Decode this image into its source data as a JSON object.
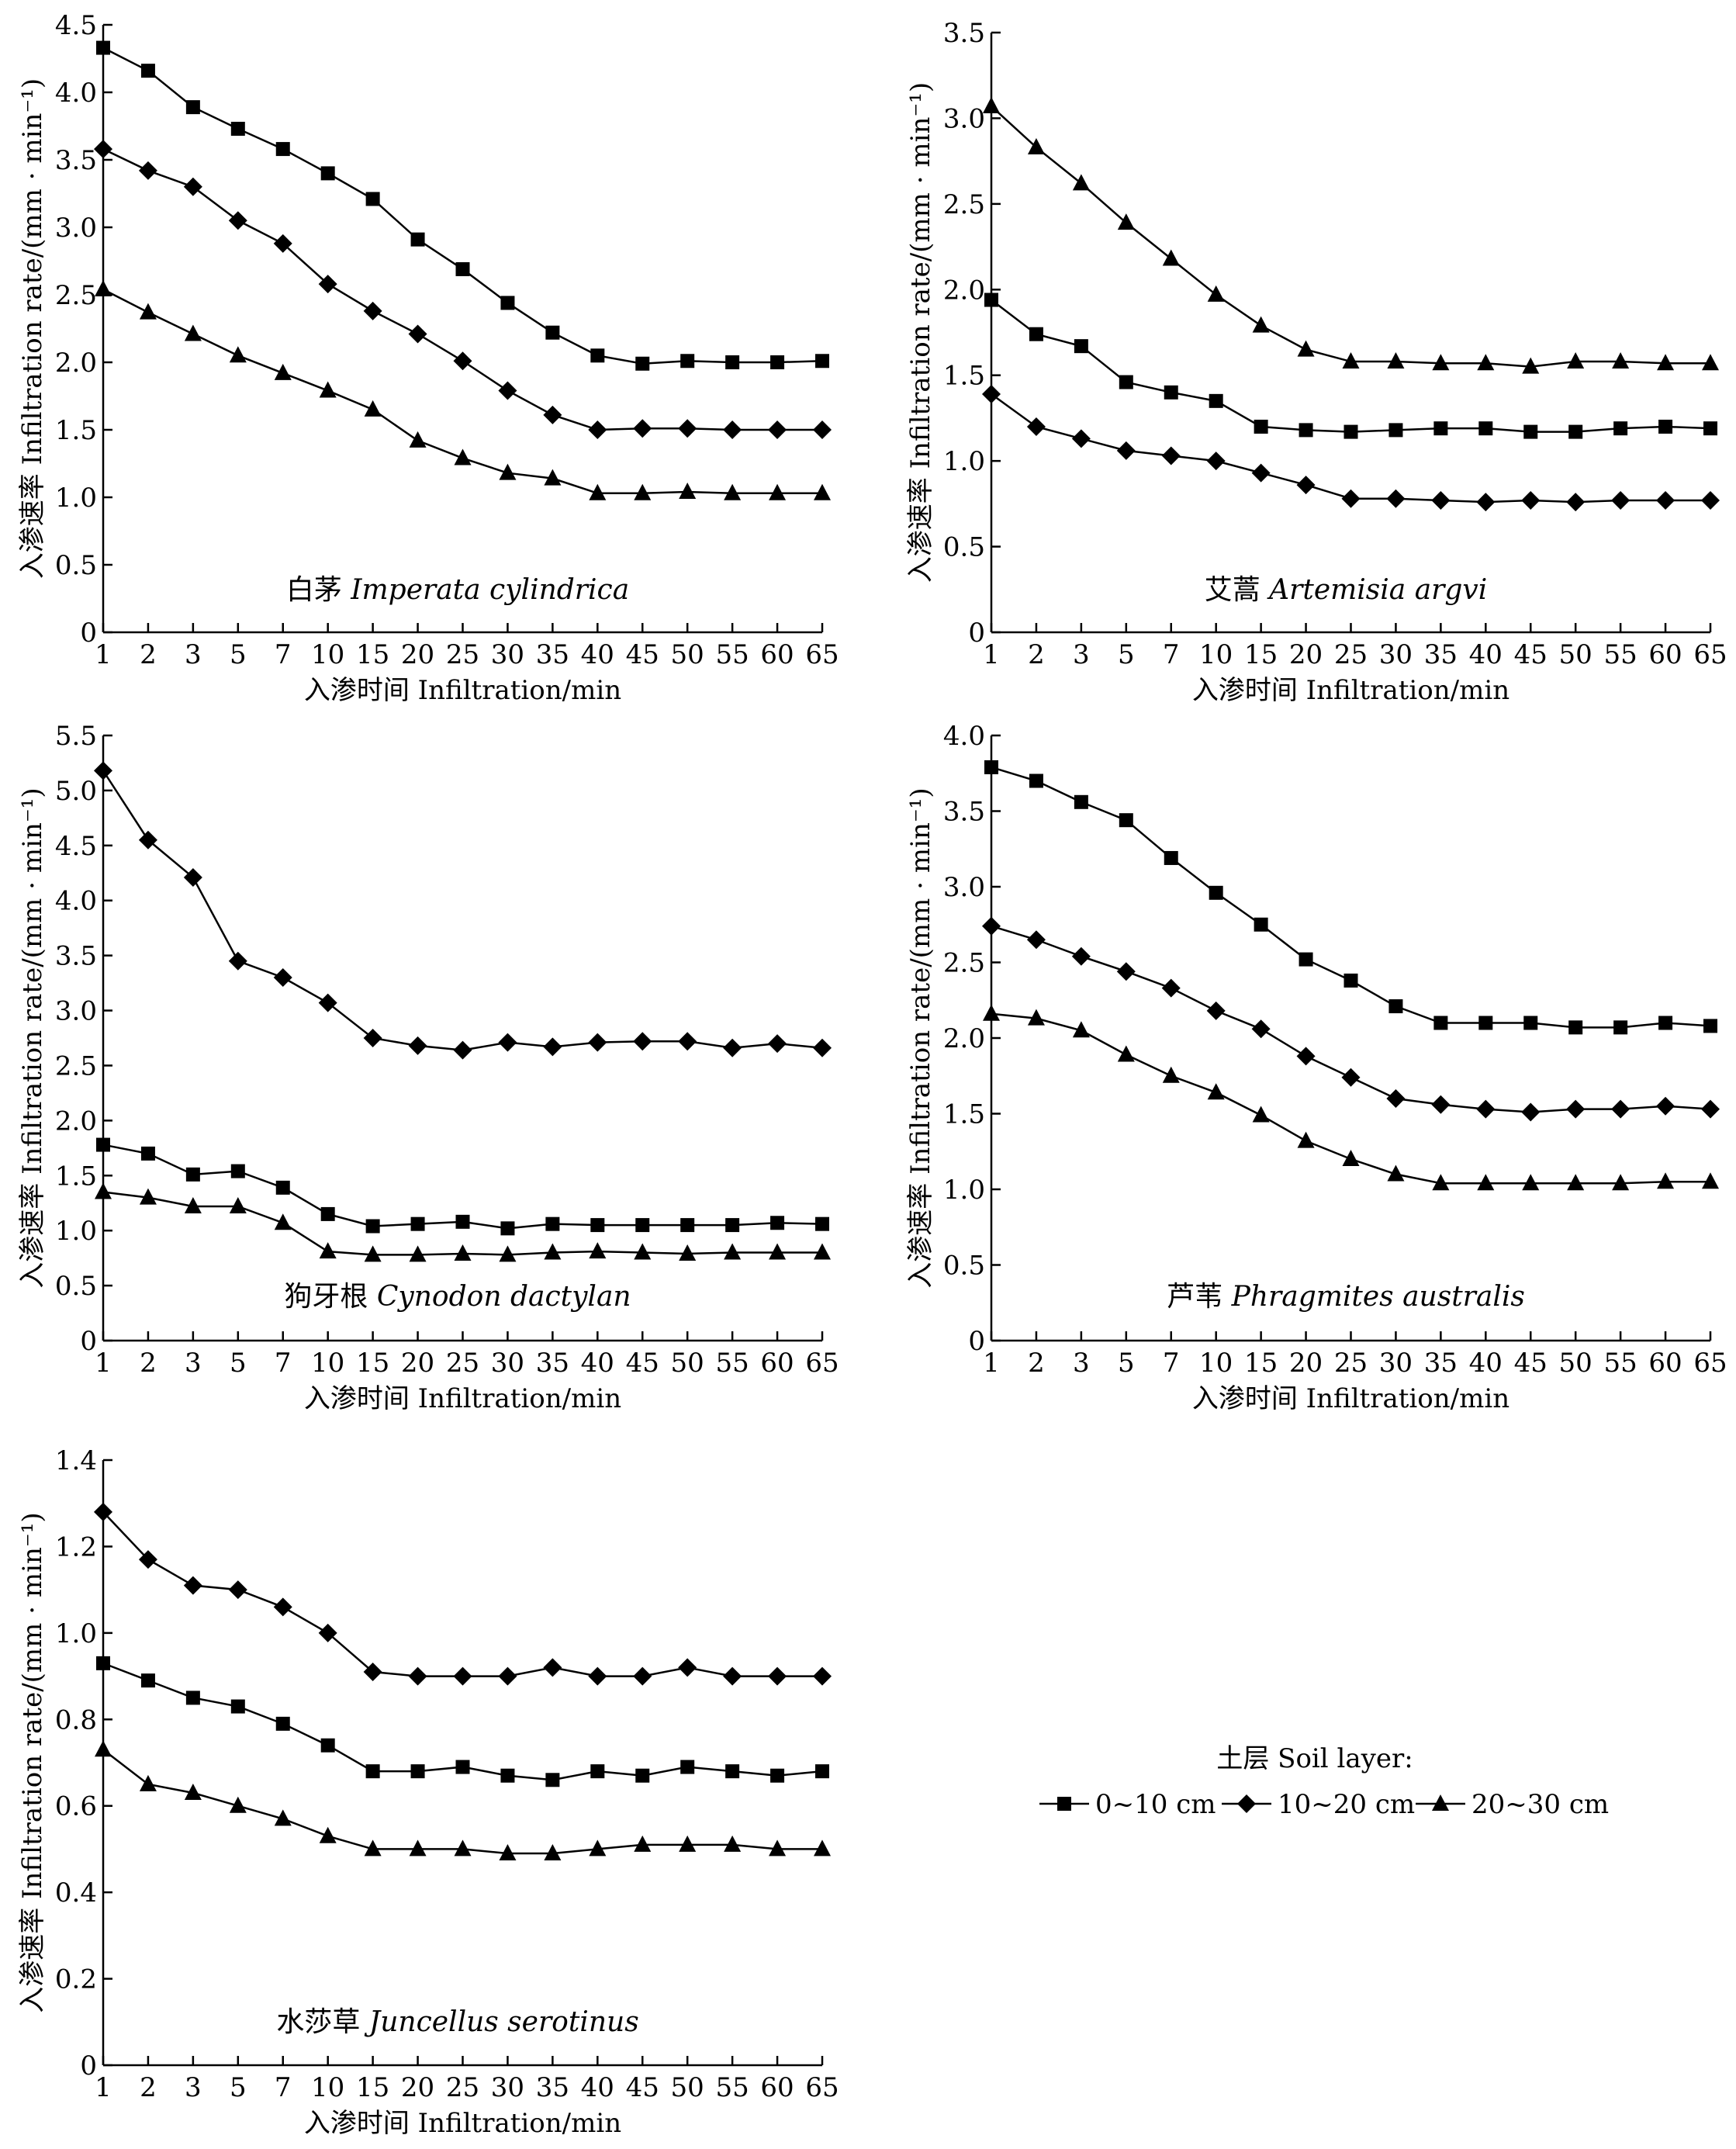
{
  "legend": {
    "title": "土层 Soil layer:",
    "items": [
      {
        "label": "0~10 cm",
        "marker": "square"
      },
      {
        "label": "10~20 cm",
        "marker": "diamond"
      },
      {
        "label": "20~30 cm",
        "marker": "triangle"
      }
    ]
  },
  "colors": {
    "line": "#000000",
    "background": "#ffffff"
  },
  "chart_data": [
    {
      "type": "line",
      "title_cn": "白茅",
      "title_latin": "Imperata cylindrica",
      "xlabel": "入渗时间 Infiltration/min",
      "ylabel": "入渗速率 Infiltration rate/(mm · min⁻¹)",
      "categories": [
        "1",
        "2",
        "3",
        "5",
        "7",
        "10",
        "15",
        "20",
        "25",
        "30",
        "35",
        "40",
        "45",
        "50",
        "55",
        "60",
        "65"
      ],
      "ylim": [
        0,
        4.5
      ],
      "yticks": [
        "0",
        "0.5",
        "1.0",
        "1.5",
        "2.0",
        "2.5",
        "3.0",
        "3.5",
        "4.0",
        "4.5"
      ],
      "series": [
        {
          "name": "0~10 cm",
          "marker": "square",
          "values": [
            4.33,
            4.16,
            3.89,
            3.73,
            3.58,
            3.4,
            3.21,
            2.91,
            2.69,
            2.44,
            2.22,
            2.05,
            1.99,
            2.01,
            2.0,
            2.0,
            2.01
          ]
        },
        {
          "name": "10~20 cm",
          "marker": "diamond",
          "values": [
            3.58,
            3.42,
            3.3,
            3.05,
            2.88,
            2.58,
            2.38,
            2.21,
            2.01,
            1.79,
            1.61,
            1.5,
            1.51,
            1.51,
            1.5,
            1.5,
            1.5
          ]
        },
        {
          "name": "20~30 cm",
          "marker": "triangle",
          "values": [
            2.54,
            2.37,
            2.21,
            2.05,
            1.92,
            1.79,
            1.65,
            1.42,
            1.29,
            1.18,
            1.14,
            1.03,
            1.03,
            1.04,
            1.03,
            1.03,
            1.03
          ]
        }
      ]
    },
    {
      "type": "line",
      "title_cn": "艾蒿",
      "title_latin": "Artemisia argvi",
      "xlabel": "入渗时间 Infiltration/min",
      "ylabel": "入渗速率 Infiltration rate/(mm · min⁻¹)",
      "categories": [
        "1",
        "2",
        "3",
        "5",
        "7",
        "10",
        "15",
        "20",
        "25",
        "30",
        "35",
        "40",
        "45",
        "50",
        "55",
        "60",
        "65"
      ],
      "ylim": [
        0,
        3.5
      ],
      "yticks": [
        "0",
        "0.5",
        "1.0",
        "1.5",
        "2.0",
        "2.5",
        "3.0",
        "3.5"
      ],
      "series": [
        {
          "name": "0~10 cm",
          "marker": "square",
          "values": [
            1.94,
            1.74,
            1.67,
            1.46,
            1.4,
            1.35,
            1.2,
            1.18,
            1.17,
            1.18,
            1.19,
            1.19,
            1.17,
            1.17,
            1.19,
            1.2,
            1.19
          ]
        },
        {
          "name": "10~20 cm",
          "marker": "diamond",
          "values": [
            1.39,
            1.2,
            1.13,
            1.06,
            1.03,
            1.0,
            0.93,
            0.86,
            0.78,
            0.78,
            0.77,
            0.76,
            0.77,
            0.76,
            0.77,
            0.77,
            0.77
          ]
        },
        {
          "name": "20~30 cm",
          "marker": "triangle",
          "values": [
            3.07,
            2.83,
            2.62,
            2.39,
            2.18,
            1.97,
            1.79,
            1.65,
            1.58,
            1.58,
            1.57,
            1.57,
            1.55,
            1.58,
            1.58,
            1.57,
            1.57
          ]
        }
      ]
    },
    {
      "type": "line",
      "title_cn": "狗牙根",
      "title_latin": "Cynodon dactylan",
      "xlabel": "入渗时间 Infiltration/min",
      "ylabel": "入渗速率 Infiltration rate/(mm · min⁻¹)",
      "categories": [
        "1",
        "2",
        "3",
        "5",
        "7",
        "10",
        "15",
        "20",
        "25",
        "30",
        "35",
        "40",
        "45",
        "50",
        "55",
        "60",
        "65"
      ],
      "ylim": [
        0,
        5.5
      ],
      "yticks": [
        "0",
        "0.5",
        "1.0",
        "1.5",
        "2.0",
        "2.5",
        "3.0",
        "3.5",
        "4.0",
        "4.5",
        "5.0",
        "5.5"
      ],
      "series": [
        {
          "name": "0~10 cm",
          "marker": "square",
          "values": [
            1.78,
            1.7,
            1.51,
            1.54,
            1.39,
            1.15,
            1.04,
            1.06,
            1.08,
            1.02,
            1.06,
            1.05,
            1.05,
            1.05,
            1.05,
            1.07,
            1.06
          ]
        },
        {
          "name": "10~20 cm",
          "marker": "diamond",
          "values": [
            5.18,
            4.55,
            4.21,
            3.45,
            3.3,
            3.07,
            2.75,
            2.68,
            2.64,
            2.71,
            2.67,
            2.71,
            2.72,
            2.72,
            2.66,
            2.7,
            2.66
          ]
        },
        {
          "name": "20~30 cm",
          "marker": "triangle",
          "values": [
            1.35,
            1.3,
            1.22,
            1.22,
            1.07,
            0.81,
            0.78,
            0.78,
            0.79,
            0.78,
            0.8,
            0.81,
            0.8,
            0.79,
            0.8,
            0.8,
            0.8
          ]
        }
      ]
    },
    {
      "type": "line",
      "title_cn": "芦苇",
      "title_latin": "Phragmites australis",
      "xlabel": "入渗时间 Infiltration/min",
      "ylabel": "入渗速率 Infiltration rate/(mm · min⁻¹)",
      "categories": [
        "1",
        "2",
        "3",
        "5",
        "7",
        "10",
        "15",
        "20",
        "25",
        "30",
        "35",
        "40",
        "45",
        "50",
        "55",
        "60",
        "65"
      ],
      "ylim": [
        0,
        4.0
      ],
      "yticks": [
        "0",
        "0.5",
        "1.0",
        "1.5",
        "2.0",
        "2.5",
        "3.0",
        "3.5",
        "4.0"
      ],
      "series": [
        {
          "name": "0~10 cm",
          "marker": "square",
          "values": [
            3.79,
            3.7,
            3.56,
            3.44,
            3.19,
            2.96,
            2.75,
            2.52,
            2.38,
            2.21,
            2.1,
            2.1,
            2.1,
            2.07,
            2.07,
            2.1,
            2.08
          ]
        },
        {
          "name": "10~20 cm",
          "marker": "diamond",
          "values": [
            2.74,
            2.65,
            2.54,
            2.44,
            2.33,
            2.18,
            2.06,
            1.88,
            1.74,
            1.6,
            1.56,
            1.53,
            1.51,
            1.53,
            1.53,
            1.55,
            1.53
          ]
        },
        {
          "name": "20~30 cm",
          "marker": "triangle",
          "values": [
            2.16,
            2.13,
            2.05,
            1.89,
            1.75,
            1.64,
            1.49,
            1.32,
            1.2,
            1.1,
            1.04,
            1.04,
            1.04,
            1.04,
            1.04,
            1.05,
            1.05
          ]
        }
      ]
    },
    {
      "type": "line",
      "title_cn": "水莎草",
      "title_latin": "Juncellus serotinus",
      "xlabel": "入渗时间 Infiltration/min",
      "ylabel": "入渗速率 Infiltration rate/(mm · min⁻¹)",
      "categories": [
        "1",
        "2",
        "3",
        "5",
        "7",
        "10",
        "15",
        "20",
        "25",
        "30",
        "35",
        "40",
        "45",
        "50",
        "55",
        "60",
        "65"
      ],
      "ylim": [
        0,
        1.4
      ],
      "yticks": [
        "0",
        "0.2",
        "0.4",
        "0.6",
        "0.8",
        "1.0",
        "1.2",
        "1.4"
      ],
      "series": [
        {
          "name": "0~10 cm",
          "marker": "square",
          "values": [
            0.93,
            0.89,
            0.85,
            0.83,
            0.79,
            0.74,
            0.68,
            0.68,
            0.69,
            0.67,
            0.66,
            0.68,
            0.67,
            0.69,
            0.68,
            0.67,
            0.68
          ]
        },
        {
          "name": "10~20 cm",
          "marker": "diamond",
          "values": [
            1.28,
            1.17,
            1.11,
            1.1,
            1.06,
            1.0,
            0.91,
            0.9,
            0.9,
            0.9,
            0.92,
            0.9,
            0.9,
            0.92,
            0.9,
            0.9,
            0.9
          ]
        },
        {
          "name": "20~30 cm",
          "marker": "triangle",
          "values": [
            0.73,
            0.65,
            0.63,
            0.6,
            0.57,
            0.53,
            0.5,
            0.5,
            0.5,
            0.49,
            0.49,
            0.5,
            0.51,
            0.51,
            0.51,
            0.5,
            0.5
          ]
        }
      ]
    }
  ]
}
